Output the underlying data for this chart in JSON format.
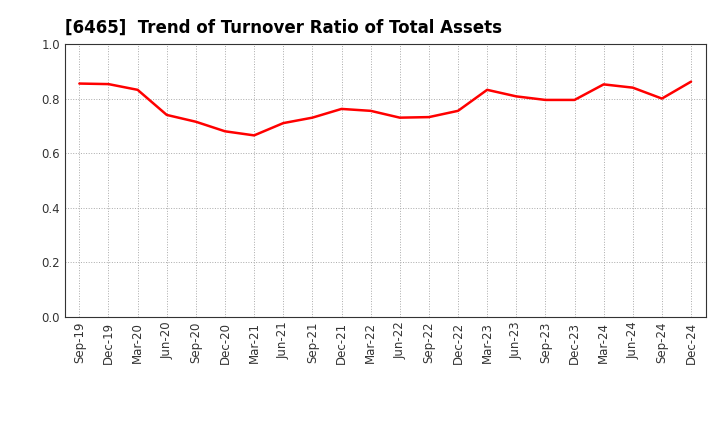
{
  "title": "[6465]  Trend of Turnover Ratio of Total Assets",
  "x_labels": [
    "Sep-19",
    "Dec-19",
    "Mar-20",
    "Jun-20",
    "Sep-20",
    "Dec-20",
    "Mar-21",
    "Jun-21",
    "Sep-21",
    "Dec-21",
    "Mar-22",
    "Jun-22",
    "Sep-22",
    "Dec-22",
    "Mar-23",
    "Jun-23",
    "Sep-23",
    "Dec-23",
    "Mar-24",
    "Jun-24",
    "Sep-24",
    "Dec-24"
  ],
  "values": [
    0.855,
    0.853,
    0.832,
    0.74,
    0.715,
    0.68,
    0.665,
    0.71,
    0.73,
    0.762,
    0.755,
    0.73,
    0.732,
    0.755,
    0.832,
    0.808,
    0.795,
    0.795,
    0.852,
    0.84,
    0.8,
    0.862
  ],
  "line_color": "#FF0000",
  "line_width": 1.8,
  "ylim": [
    0.0,
    1.0
  ],
  "yticks": [
    0.0,
    0.2,
    0.4,
    0.6,
    0.8,
    1.0
  ],
  "grid_color": "#aaaaaa",
  "background_color": "#ffffff",
  "title_fontsize": 12,
  "tick_fontsize": 8.5,
  "fig_width": 7.2,
  "fig_height": 4.4,
  "dpi": 100
}
